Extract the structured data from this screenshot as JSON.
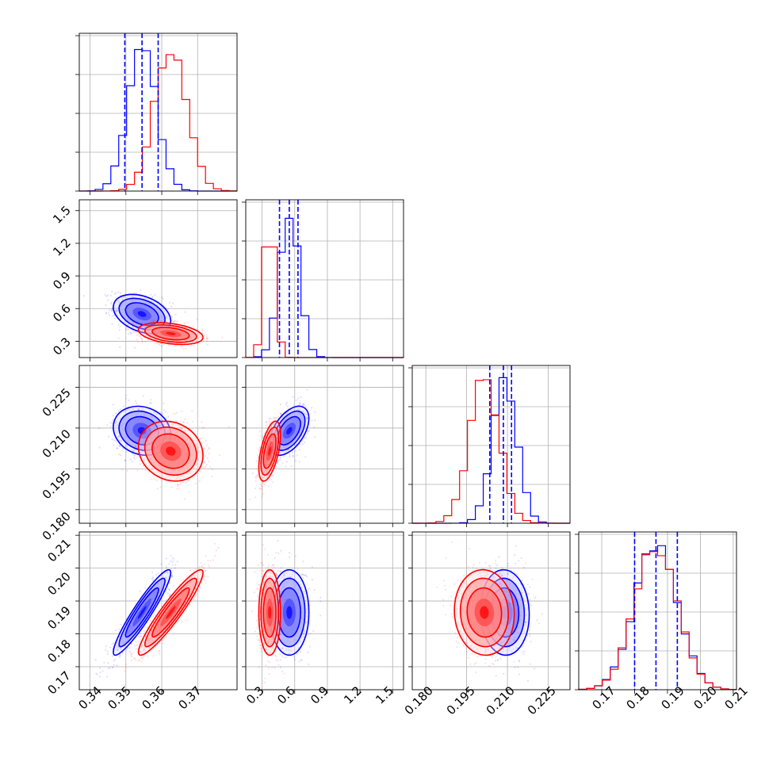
{
  "chart_data": {
    "type": "corner",
    "grid": true,
    "series": [
      {
        "name": "",
        "color": "#0000ff",
        "mean": [
          0.3545,
          0.55,
          0.209,
          0.1865
        ],
        "sd": [
          0.004,
          0.09,
          0.0045,
          0.0065
        ],
        "quantiles": [
          [
            0.3497,
            0.3545,
            0.359
          ],
          [
            0.46,
            0.55,
            0.63
          ],
          [
            0.2035,
            0.2085,
            0.2115
          ],
          [
            0.18,
            0.1865,
            0.193
          ]
        ],
        "corr": {
          "1_0": -0.35,
          "2_0": -0.15,
          "2_1": 0.5,
          "3_0": 0.93,
          "3_1": 0.0,
          "3_2": -0.05
        }
      },
      {
        "name": "",
        "color": "#ff0000",
        "mean": [
          0.3625,
          0.37,
          0.2015,
          0.1865
        ],
        "sd": [
          0.0045,
          0.05,
          0.0055,
          0.0065
        ],
        "quantiles": null,
        "corr": {
          "1_0": -0.35,
          "2_0": -0.15,
          "2_1": 0.55,
          "3_0": 0.93,
          "3_1": 0.0,
          "3_2": -0.05
        }
      }
    ],
    "diag_ranges": [
      [
        0.337,
        0.381
      ],
      [
        0.15,
        1.6
      ],
      [
        0.175,
        0.233
      ],
      [
        0.163,
        0.211
      ]
    ],
    "hist_max_value": [
      0.51,
      1.28,
      0.225,
      0.207
    ],
    "tick_labels": [
      [
        "0.34",
        "0.35",
        "0.36",
        "0.37"
      ],
      [
        "0.3",
        "0.6",
        "0.9",
        "1.2",
        "1.5"
      ],
      [
        "0.180",
        "0.195",
        "0.210",
        "0.225"
      ],
      [
        "0.17",
        "0.18",
        "0.19",
        "0.20",
        "0.21"
      ]
    ],
    "ticks": [
      [
        0.34,
        0.35,
        0.36,
        0.37
      ],
      [
        0.3,
        0.6,
        0.9,
        1.2,
        1.5
      ],
      [
        0.18,
        0.195,
        0.21,
        0.225
      ],
      [
        0.17,
        0.18,
        0.19,
        0.2,
        0.21
      ]
    ],
    "diag_ticks": [
      [
        0.34,
        0.35,
        0.36,
        0.37
      ],
      [
        0.3,
        0.6,
        0.9,
        1.2,
        1.5
      ],
      [
        0.18,
        0.195,
        0.21,
        0.225
      ],
      [
        0.17,
        0.18,
        0.19,
        0.2,
        0.21
      ]
    ],
    "diag_y_ticks": [
      0,
      0.25,
      0.5,
      0.75,
      1.0
    ]
  }
}
